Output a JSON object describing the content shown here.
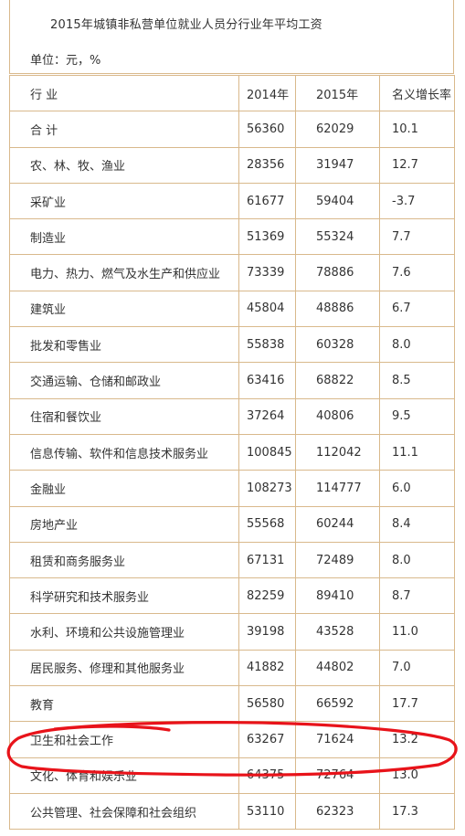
{
  "title": "2015年城镇非私营单位就业人员分行业年平均工资",
  "unit_label": "单位：元，%",
  "columns": [
    "行 业",
    "2014年",
    "2015年",
    "名义增长率"
  ],
  "rows": [
    [
      "合 计",
      "56360",
      "62029",
      "10.1"
    ],
    [
      "农、林、牧、渔业",
      "28356",
      "31947",
      "12.7"
    ],
    [
      "采矿业",
      "61677",
      "59404",
      "-3.7"
    ],
    [
      "制造业",
      "51369",
      "55324",
      "7.7"
    ],
    [
      "电力、热力、燃气及水生产和供应业",
      "73339",
      "78886",
      "7.6"
    ],
    [
      "建筑业",
      "45804",
      "48886",
      "6.7"
    ],
    [
      "批发和零售业",
      "55838",
      "60328",
      "8.0"
    ],
    [
      "交通运输、仓储和邮政业",
      "63416",
      "68822",
      "8.5"
    ],
    [
      "住宿和餐饮业",
      "37264",
      "40806",
      "9.5"
    ],
    [
      "信息传输、软件和信息技术服务业",
      "100845",
      "112042",
      "11.1"
    ],
    [
      "金融业",
      "108273",
      "114777",
      "6.0"
    ],
    [
      "房地产业",
      "55568",
      "60244",
      "8.4"
    ],
    [
      "租赁和商务服务业",
      "67131",
      "72489",
      "8.0"
    ],
    [
      "科学研究和技术服务业",
      "82259",
      "89410",
      "8.7"
    ],
    [
      "水利、环境和公共设施管理业",
      "39198",
      "43528",
      "11.0"
    ],
    [
      "居民服务、修理和其他服务业",
      "41882",
      "44802",
      "7.0"
    ],
    [
      "教育",
      "56580",
      "66592",
      "17.7"
    ],
    [
      "卫生和社会工作",
      "63267",
      "71624",
      "13.2"
    ],
    [
      "文化、体育和娱乐业",
      "64375",
      "72764",
      "13.0"
    ],
    [
      "公共管理、社会保障和社会组织",
      "53110",
      "62323",
      "17.3"
    ]
  ],
  "colors": {
    "border": "#d9b98c",
    "text": "#333333",
    "highlight_circle": "#e8131a"
  }
}
